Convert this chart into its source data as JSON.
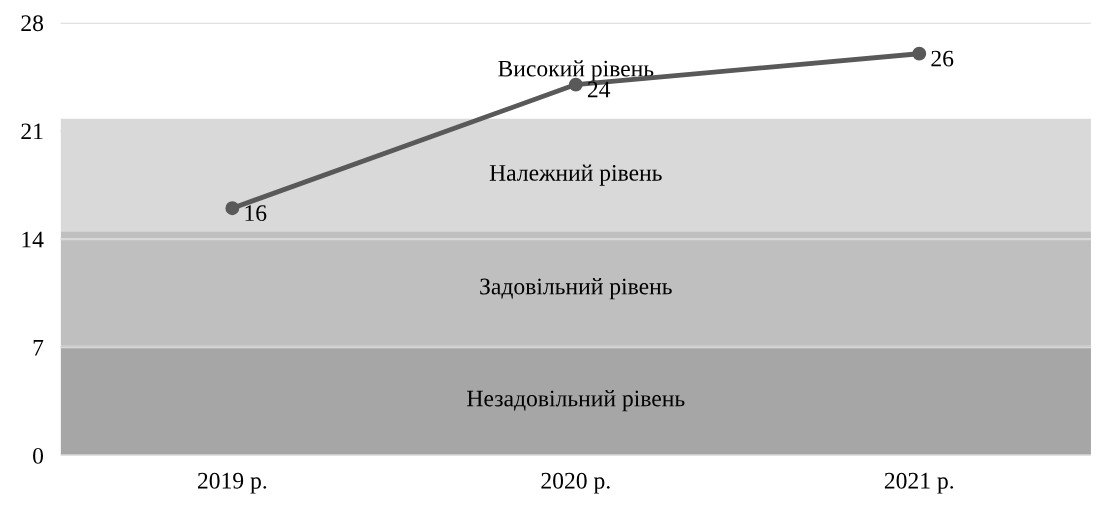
{
  "chart_data": {
    "type": "line",
    "categories": [
      "2019 р.",
      "2020 р.",
      "2021 р."
    ],
    "series": [
      {
        "color": "#595959",
        "values": [
          16,
          24,
          26
        ]
      }
    ],
    "marker": "circle",
    "line_style": "solid",
    "data_labels": true,
    "ylim": [
      0,
      28
    ],
    "yticks": [
      0,
      7,
      14,
      21,
      28
    ],
    "grid": "y",
    "bands": [
      {
        "axis": "y",
        "from": 0,
        "to": 7.1,
        "label": "Незадовільний рівень",
        "color": "#a6a6a6"
      },
      {
        "axis": "y",
        "from": 7.1,
        "to": 14.5,
        "label": "Задовільний рівень",
        "color": "#bfbfbf"
      },
      {
        "axis": "y",
        "from": 14.5,
        "to": 21.8,
        "label": "Належний рівень",
        "color": "#d9d9d9"
      },
      {
        "axis": "y",
        "from": 21.8,
        "to": 28,
        "label": "Високий рівень",
        "color": "#ffffff"
      }
    ]
  }
}
